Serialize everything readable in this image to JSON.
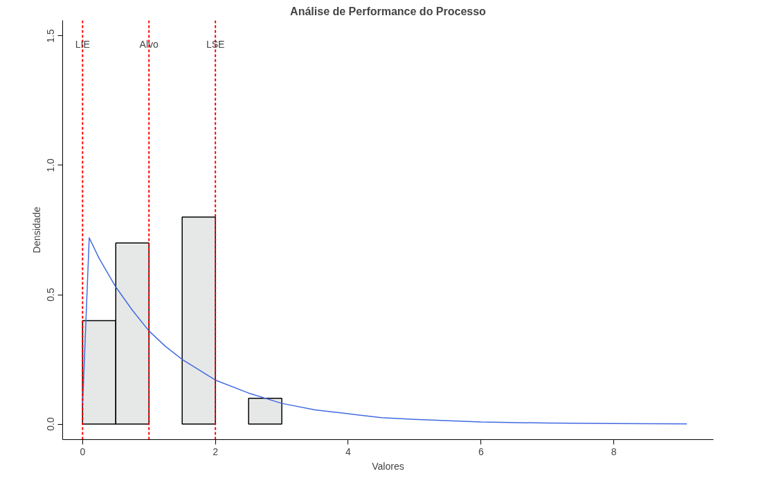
{
  "chart_data": {
    "type": "histogram",
    "title": "Análise de Performance do Processo",
    "xlabel": "Valores",
    "ylabel": "Densidade",
    "series": [
      {
        "bins": [
          0,
          0.5,
          1,
          1.5,
          2,
          2.5,
          3
        ],
        "values": [
          0.4,
          0.7,
          0,
          0.8,
          0,
          0.1
        ],
        "color": "#e6e8e8"
      },
      {
        "type": "line",
        "color": "#4169e1",
        "x": [
          0,
          0.1,
          0.25,
          0.5,
          0.75,
          1,
          1.25,
          1.5,
          2,
          2.5,
          3,
          3.5,
          4,
          4.5,
          5,
          6,
          7,
          8,
          9.1
        ],
        "values": [
          0.07,
          0.72,
          0.64,
          0.53,
          0.44,
          0.36,
          0.3,
          0.25,
          0.17,
          0.12,
          0.08,
          0.055,
          0.04,
          0.025,
          0.018,
          0.008,
          0.004,
          0.002,
          0.001
        ]
      }
    ],
    "ref_lines": [
      {
        "axis": "x",
        "value": 0,
        "label": "LIE",
        "color": "#ff0000",
        "line_style": "dashed"
      },
      {
        "axis": "x",
        "value": 1,
        "label": "Alvo",
        "color": "#ff0000",
        "line_style": "dashed"
      },
      {
        "axis": "x",
        "value": 2,
        "label": "LSE",
        "color": "#ff0000",
        "line_style": "dashed"
      }
    ],
    "xlim": [
      -0.3,
      9.5
    ],
    "ylim": [
      -0.06,
      1.56
    ],
    "xticks": [
      0,
      2,
      4,
      6,
      8
    ],
    "yticks": [
      {
        "value": 0,
        "label": "0.0"
      },
      {
        "value": 0.5,
        "label": "0.5"
      },
      {
        "value": 1,
        "label": "1.0"
      },
      {
        "value": 1.5,
        "label": "1.5"
      }
    ],
    "grid": false
  }
}
